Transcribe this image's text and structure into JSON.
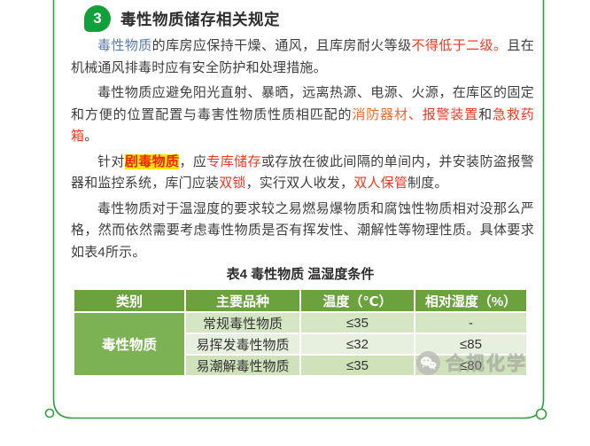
{
  "header": {
    "badge_number": "3",
    "title": "毒性物质储存相关规定"
  },
  "paragraphs": [
    {
      "segments": [
        {
          "t": "毒性物质",
          "c": "blue"
        },
        {
          "t": "的库房应保持干燥、通风，且库房耐火等级",
          "c": ""
        },
        {
          "t": "不得低于二级。",
          "c": "red"
        },
        {
          "t": "且在机械通风排毒时应有安全防护和处理措施。",
          "c": ""
        }
      ]
    },
    {
      "segments": [
        {
          "t": "毒性物质应避免阳光直射、暴晒，远离热源、电源、火源，在库区的固定和方便的位置配置与毒害性物质性质相匹配的",
          "c": ""
        },
        {
          "t": "消防器材",
          "c": "orange"
        },
        {
          "t": "、",
          "c": "red"
        },
        {
          "t": "报警装置",
          "c": "red"
        },
        {
          "t": "和",
          "c": ""
        },
        {
          "t": "急救药箱",
          "c": "red"
        },
        {
          "t": "。",
          "c": ""
        }
      ]
    },
    {
      "segments": [
        {
          "t": "针对",
          "c": ""
        },
        {
          "t": "剧毒物质",
          "c": "hl"
        },
        {
          "t": "，应",
          "c": ""
        },
        {
          "t": "专库储存",
          "c": "red"
        },
        {
          "t": "或存放在彼此间隔的单间内，并安装防盗报警器和监控系统，库门应装",
          "c": ""
        },
        {
          "t": "双锁",
          "c": "red"
        },
        {
          "t": "，实行双人收发，",
          "c": ""
        },
        {
          "t": "双人保管",
          "c": "red"
        },
        {
          "t": "制度。",
          "c": ""
        }
      ]
    },
    {
      "segments": [
        {
          "t": "毒性物质对于温湿度的要求较之易燃易爆物质和腐蚀性物质相对没那么严格，然而依然需要考虑毒性物质是否有挥发性、潮解性等物理性质。具体要求如表4所示。",
          "c": ""
        }
      ]
    }
  ],
  "table": {
    "caption": "表4 毒性物质 温湿度条件",
    "headers": [
      "类别",
      "主要品种",
      "温度（℃）",
      "相对湿度（%）"
    ],
    "category": "毒性物质",
    "rows": [
      {
        "variety": "常规毒性物质",
        "temp": "≤35",
        "humidity": "-"
      },
      {
        "variety": "易挥发毒性物质",
        "temp": "≤32",
        "humidity": "≤85"
      },
      {
        "variety": "易潮解毒性物质",
        "temp": "≤35",
        "humidity": "≤80"
      }
    ]
  },
  "watermark": {
    "text": "合规化学",
    "icon": "wechat-icon"
  },
  "colors": {
    "accent_green": "#2f9e3f",
    "badge_green": "#12a03c",
    "table_header_green": "#6ba23e",
    "category_green": "#7cb254",
    "row_green_light": "#d5e6c4",
    "row_green_lighter": "#e7f0de",
    "red": "#ee3a24",
    "orange": "#f06a2c",
    "blue": "#5a79a5",
    "highlight_yellow": "#ffe404"
  }
}
